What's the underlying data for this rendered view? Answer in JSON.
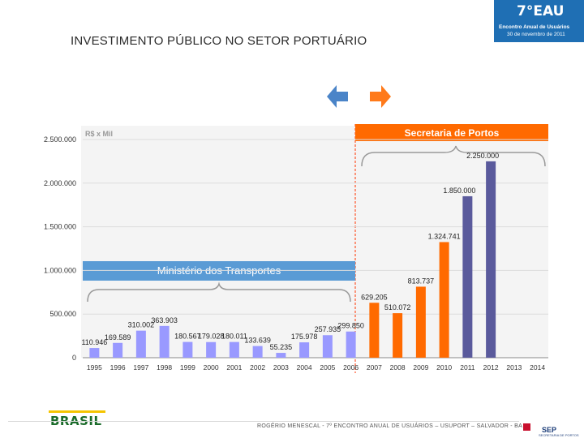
{
  "slide": {
    "title": "INVESTIMENTO PÚBLICO NO SETOR PORTUÁRIO",
    "footer": "ROGÉRIO MENESCAL - 7º ENCONTRO ANUAL DE USUÁRIOS – USUPORT – SALVADOR - BA",
    "event_logo": {
      "big": "7°EAU",
      "line1": "Encontro Anual de Usuários",
      "line2": "30 de novembro de 2011"
    },
    "brasil_logo": "BRASIL",
    "sep_logo": {
      "name": "SEP",
      "sub": "SECRETARIA DE PORTOS"
    },
    "arrows": {
      "left_color": "#4a84c8",
      "right_color": "#ff7a1a"
    }
  },
  "chart_data": {
    "type": "bar",
    "title": "",
    "unit_label": "R$ x Mil",
    "ylim": [
      0,
      2500000
    ],
    "yticks": [
      "0",
      "500.000",
      "1.000.000",
      "1.500.000",
      "2.000.000",
      "2.500.000"
    ],
    "ytick_values": [
      0,
      500000,
      1000000,
      1500000,
      2000000,
      2500000
    ],
    "categories": [
      "1995",
      "1996",
      "1997",
      "1998",
      "1999",
      "2000",
      "2001",
      "2002",
      "2003",
      "2004",
      "2005",
      "2006",
      "2007",
      "2008",
      "2009",
      "2010",
      "2011",
      "2012",
      "2013",
      "2014"
    ],
    "values": [
      110946,
      169589,
      310002,
      363903,
      180567,
      179028,
      180011,
      133639,
      55235,
      175978,
      257935,
      299850,
      629205,
      510072,
      813737,
      1324741,
      1850000,
      2250000,
      null,
      null
    ],
    "labels": [
      "110.946",
      "169.589",
      "310.002",
      "363.903",
      "180.567",
      "179.028",
      "180.011",
      "133.639",
      "55.235",
      "175.978",
      "257.935",
      "299.850",
      "629.205",
      "510.072",
      "813.737",
      "1.324.741",
      "1.850.000",
      "2.250.000",
      "",
      ""
    ],
    "colors": [
      "#9999ff",
      "#9999ff",
      "#9999ff",
      "#9999ff",
      "#9999ff",
      "#9999ff",
      "#9999ff",
      "#9999ff",
      "#9999ff",
      "#9999ff",
      "#9999ff",
      "#9999ff",
      "#ff6a00",
      "#ff6a00",
      "#ff6a00",
      "#ff6a00",
      "#5a5a9c",
      "#5a5a9c",
      "",
      ""
    ],
    "periods": [
      {
        "label": "Ministério dos Transportes",
        "color": "#5a9bd5"
      },
      {
        "label": "Secretaria de Portos",
        "color": "#ff6a00"
      }
    ],
    "grid": true
  }
}
